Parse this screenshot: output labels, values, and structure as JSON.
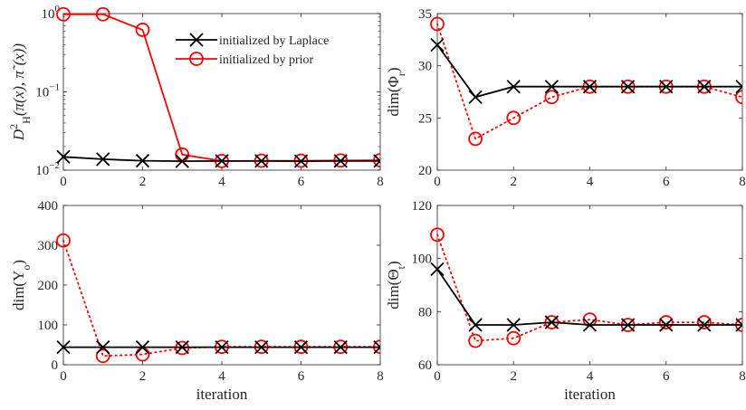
{
  "chart_data": [
    {
      "type": "line",
      "x": [
        0,
        1,
        2,
        3,
        4,
        5,
        6,
        7,
        8
      ],
      "xlim": [
        0,
        8
      ],
      "xticks": [
        0,
        2,
        4,
        6,
        8
      ],
      "ylim": [
        0.01,
        1
      ],
      "yscale": "log",
      "yticks": [
        {
          "v": 0.01,
          "label": "10^{-2}"
        },
        {
          "v": 0.1,
          "label": "10^{-1}"
        },
        {
          "v": 1,
          "label": "10^{0}"
        }
      ],
      "ylabel": "D^2_H(π(x), π˜(x))",
      "xlabel": "",
      "legend": {
        "position": "top-right"
      },
      "series": [
        {
          "name": "initialized by Laplace",
          "color": "#000000",
          "marker": "x",
          "dash": false,
          "values": [
            0.0148,
            0.0138,
            0.0132,
            0.013,
            0.0131,
            0.0131,
            0.013,
            0.0131,
            0.0131
          ]
        },
        {
          "name": "initialized by prior",
          "color": "#ff0000",
          "marker": "o",
          "dash": false,
          "values": [
            0.98,
            0.98,
            0.62,
            0.0158,
            0.0131,
            0.0132,
            0.0132,
            0.0133,
            0.0134
          ]
        }
      ]
    },
    {
      "type": "line",
      "x": [
        0,
        1,
        2,
        3,
        4,
        5,
        6,
        7,
        8
      ],
      "xlim": [
        0,
        8
      ],
      "xticks": [
        0,
        2,
        4,
        6,
        8
      ],
      "ylim": [
        20,
        35
      ],
      "yscale": "linear",
      "yticks": [
        {
          "v": 20,
          "label": "20"
        },
        {
          "v": 25,
          "label": "25"
        },
        {
          "v": 30,
          "label": "30"
        },
        {
          "v": 35,
          "label": "35"
        }
      ],
      "ylabel": "dim(Φ_r)",
      "xlabel": "",
      "series": [
        {
          "name": "initialized by Laplace",
          "color": "#000000",
          "marker": "x",
          "dash": false,
          "values": [
            32,
            27,
            28,
            28,
            28,
            28,
            28,
            28,
            28
          ]
        },
        {
          "name": "initialized by prior",
          "color": "#ff0000",
          "marker": "o",
          "dash": true,
          "values": [
            34,
            23,
            25,
            27,
            28,
            28,
            28,
            28,
            27
          ]
        }
      ]
    },
    {
      "type": "line",
      "x": [
        0,
        1,
        2,
        3,
        4,
        5,
        6,
        7,
        8
      ],
      "xlim": [
        0,
        8
      ],
      "xticks": [
        0,
        2,
        4,
        6,
        8
      ],
      "ylim": [
        0,
        400
      ],
      "yscale": "linear",
      "yticks": [
        {
          "v": 0,
          "label": "0"
        },
        {
          "v": 100,
          "label": "100"
        },
        {
          "v": 200,
          "label": "200"
        },
        {
          "v": 300,
          "label": "300"
        },
        {
          "v": 400,
          "label": "400"
        }
      ],
      "ylabel": "dim(Y_o)",
      "xlabel": "iteration",
      "series": [
        {
          "name": "initialized by Laplace",
          "color": "#000000",
          "marker": "x",
          "dash": false,
          "values": [
            44,
            44,
            44,
            44,
            44,
            44,
            44,
            44,
            44
          ]
        },
        {
          "name": "initialized by prior",
          "color": "#ff0000",
          "marker": "o",
          "dash": true,
          "values": [
            312,
            22,
            26,
            42,
            45,
            45,
            45,
            45,
            45
          ]
        }
      ]
    },
    {
      "type": "line",
      "x": [
        0,
        1,
        2,
        3,
        4,
        5,
        6,
        7,
        8
      ],
      "xlim": [
        0,
        8
      ],
      "xticks": [
        0,
        2,
        4,
        6,
        8
      ],
      "ylim": [
        60,
        120
      ],
      "yscale": "linear",
      "yticks": [
        {
          "v": 60,
          "label": "60"
        },
        {
          "v": 80,
          "label": "80"
        },
        {
          "v": 100,
          "label": "100"
        },
        {
          "v": 120,
          "label": "120"
        }
      ],
      "ylabel": "dim(Θ_t)",
      "xlabel": "iteration",
      "series": [
        {
          "name": "initialized by Laplace",
          "color": "#000000",
          "marker": "x",
          "dash": false,
          "values": [
            96,
            75,
            75,
            76,
            75,
            75,
            75,
            75,
            75
          ]
        },
        {
          "name": "initialized by prior",
          "color": "#ff0000",
          "marker": "o",
          "dash": true,
          "values": [
            109,
            69,
            70,
            76,
            77,
            75,
            76,
            76,
            75
          ]
        }
      ]
    }
  ]
}
